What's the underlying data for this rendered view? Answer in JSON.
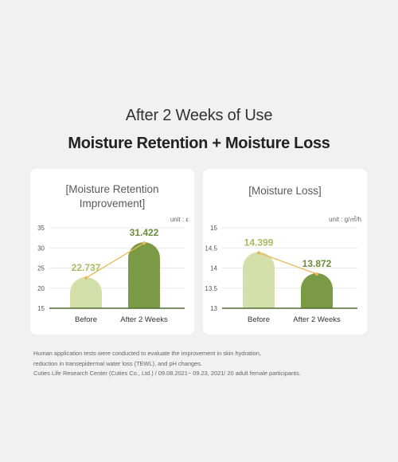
{
  "header": {
    "subtitle": "After 2 Weeks of Use",
    "title": "Moisture Retention + Moisture Loss"
  },
  "chart_data": [
    {
      "type": "bar",
      "title_lines": [
        "[Moisture Retention",
        "Improvement]"
      ],
      "unit": "unit : ε",
      "categories": [
        "Before",
        "After 2 Weeks"
      ],
      "values": [
        22.737,
        31.422
      ],
      "value_labels": [
        "22.737",
        "31.422"
      ],
      "ylim": [
        15,
        35
      ],
      "yticks": [
        "15",
        "20",
        "25",
        "30",
        "35"
      ],
      "ytick_values": [
        15,
        20,
        25,
        30,
        35
      ],
      "grid": true,
      "trend_line": true,
      "bar_colors": [
        "#d4e0a9",
        "#7a9a45"
      ],
      "label_colors": [
        "#a7bb63",
        "#6b8c3a"
      ]
    },
    {
      "type": "bar",
      "title_lines": [
        "[Moisture Loss]"
      ],
      "unit": "unit : g/㎡/h",
      "categories": [
        "Before",
        "After 2 Weeks"
      ],
      "values": [
        14.399,
        13.872
      ],
      "value_labels": [
        "14.399",
        "13.872"
      ],
      "ylim": [
        13,
        15
      ],
      "yticks": [
        "13",
        "13.5",
        "14",
        "14.5",
        "15"
      ],
      "ytick_values": [
        13,
        13.5,
        14,
        14.5,
        15
      ],
      "grid": true,
      "trend_line": true,
      "bar_colors": [
        "#d4e0a9",
        "#7a9a45"
      ],
      "label_colors": [
        "#a7bb63",
        "#6b8c3a"
      ]
    }
  ],
  "colors": {
    "trend_line": "#e8b95a",
    "trend_dot": "#e8b95a",
    "axis_base": "#4f6e33",
    "grid": "#e2e2e2",
    "chart_title": "#5a5a5a"
  },
  "notes": [
    "Human application tests were conducted to evaluate the improvement in skin hydration,",
    "reduction in transepidermal water loss (TEWL), and pH changes.",
    "Cuties Life Research Center (Cuties Co., Ltd.) / 09.08.2021~ 09.23, 2021/ 20 adult female participants."
  ]
}
